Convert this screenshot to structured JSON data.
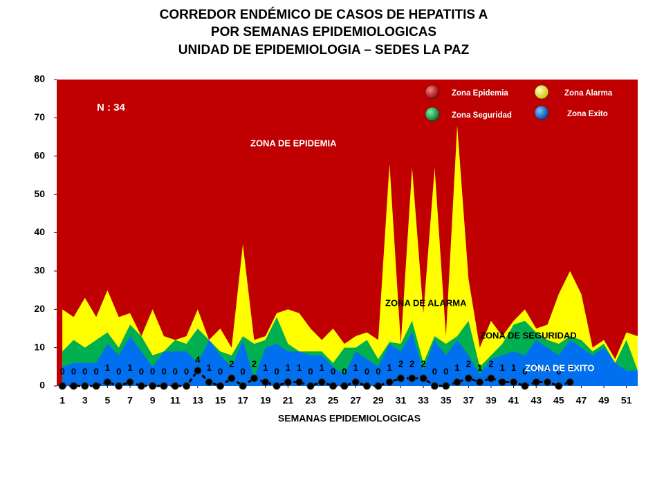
{
  "chart_data": {
    "type": "area",
    "title": [
      "CORREDOR ENDÉMICO DE CASOS DE HEPATITIS A",
      "POR SEMANAS EPIDEMIOLOGICAS",
      "UNIDAD DE EPIDEMIOLOGIA – SEDES LA PAZ"
    ],
    "x_label": "SEMANAS EPIDEMIOLOGICAS",
    "annotations": [
      "N : 34",
      "ZONA DE EPIDEMIA",
      "ZONA DE ALARMA",
      "ZONA DE  SEGURIDAD",
      "ZONA DE  EXITO"
    ],
    "x": [
      1,
      2,
      3,
      4,
      5,
      6,
      7,
      8,
      9,
      10,
      11,
      12,
      13,
      14,
      15,
      16,
      17,
      18,
      19,
      20,
      21,
      22,
      23,
      24,
      25,
      26,
      27,
      28,
      29,
      30,
      31,
      32,
      33,
      34,
      35,
      36,
      37,
      38,
      39,
      40,
      41,
      42,
      43,
      44,
      45,
      46,
      47,
      48,
      49,
      50,
      51,
      52
    ],
    "xlim": [
      0.5,
      52
    ],
    "xticks": [
      1,
      3,
      5,
      7,
      9,
      11,
      13,
      15,
      17,
      19,
      21,
      23,
      25,
      27,
      29,
      31,
      33,
      35,
      37,
      39,
      41,
      43,
      45,
      47,
      49,
      51
    ],
    "ylim": [
      0,
      80
    ],
    "yticks": [
      0,
      10,
      20,
      30,
      40,
      50,
      60,
      70,
      80
    ],
    "grid": false,
    "legend": "top-right",
    "series": [
      {
        "name": "Zona Epidemia",
        "color": "#c00000",
        "values": [
          80,
          80,
          80,
          80,
          80,
          80,
          80,
          80,
          80,
          80,
          80,
          80,
          80,
          80,
          80,
          80,
          80,
          80,
          80,
          80,
          80,
          80,
          80,
          80,
          80,
          80,
          80,
          80,
          80,
          80,
          80,
          80,
          80,
          80,
          80,
          80,
          80,
          80,
          80,
          80,
          80,
          80,
          80,
          80,
          80,
          80,
          80,
          80,
          80,
          80,
          80,
          80
        ]
      },
      {
        "name": "Zona Alarma",
        "color": "#ffff00",
        "values": [
          20,
          18,
          23,
          18,
          25,
          18,
          19,
          13,
          20,
          13,
          12,
          13,
          20,
          12,
          15,
          10,
          37,
          12,
          13,
          19,
          20,
          19,
          15,
          12,
          15,
          11,
          13,
          14,
          12,
          58,
          11,
          57,
          19,
          57,
          13,
          68,
          28,
          10,
          17,
          13,
          17,
          20,
          15,
          16,
          24,
          30,
          24,
          10,
          12,
          7,
          14,
          13
        ]
      },
      {
        "name": "Zona Seguridad",
        "color": "#00b050",
        "values": [
          9,
          12,
          10,
          12,
          14,
          10,
          16,
          13,
          8,
          9,
          12,
          11,
          15,
          12,
          9,
          8,
          13,
          11,
          12,
          18,
          11,
          9,
          9,
          9,
          6,
          10,
          10,
          12,
          7,
          11.5,
          11,
          17,
          6,
          13,
          11,
          13,
          17,
          5,
          8,
          11,
          16,
          17,
          14,
          12,
          11,
          13,
          12,
          9,
          11,
          6,
          12,
          4
        ]
      },
      {
        "name": "Zona Exito",
        "color": "#0070f0",
        "values": [
          5,
          6,
          6,
          6,
          11,
          8,
          13,
          9,
          5,
          9,
          9,
          9,
          6,
          12,
          8,
          5,
          12,
          2,
          10,
          11,
          9,
          9,
          8,
          8,
          5,
          3,
          9,
          7,
          5,
          11,
          9,
          14,
          4,
          12,
          8,
          12,
          8,
          3,
          7,
          8,
          9,
          8,
          12,
          10,
          8,
          12,
          10,
          8,
          10,
          6,
          4,
          4
        ]
      }
    ],
    "cases": {
      "color": "#000000",
      "values": [
        0,
        0,
        0,
        0,
        1,
        0,
        1,
        0,
        0,
        0,
        0,
        0,
        4,
        1,
        0,
        2,
        0,
        2,
        1,
        0,
        1,
        1,
        0,
        1,
        0,
        0,
        1,
        0,
        0,
        1,
        2,
        2,
        2,
        0,
        0,
        1,
        2,
        1,
        2,
        1,
        1,
        0,
        1,
        1,
        0,
        1,
        null,
        null,
        null,
        null,
        null,
        null
      ]
    }
  }
}
